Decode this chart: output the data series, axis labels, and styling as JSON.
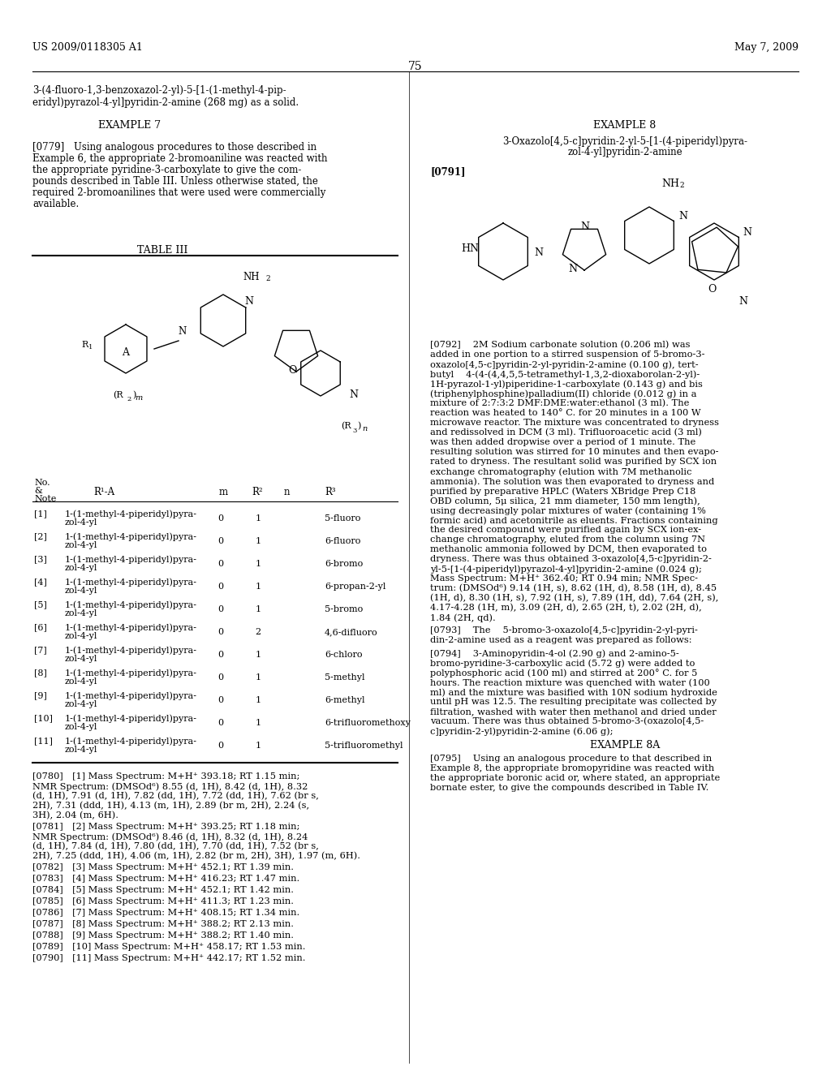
{
  "page_header_left": "US 2009/0118305 A1",
  "page_header_right": "May 7, 2009",
  "page_number": "75",
  "left_col_top": "3-(4-fluoro-1,3-benzoxazol-2-yl)-5-[1-(1-methyl-4-pip-\neridyl)pyrazol-4-yl]pyridin-2-amine (268 mg) as a solid.",
  "example7_heading": "EXAMPLE 7",
  "para_0779": "[0779] Using analogous procedures to those described in\nExample 6, the appropriate 2-bromoaniline was reacted with\nthe appropriate pyridine-3-carboxylate to give the com-\npounds described in Table III. Unless otherwise stated, the\nrequired 2-bromoanilines that were used were commercially\navailable.",
  "table_heading": "TABLE III",
  "table_col_headers": [
    "No.\n&\nNote",
    "R¹-A",
    "m",
    "R²",
    "n",
    "R³"
  ],
  "table_rows": [
    [
      "[1]",
      "1-(1-methyl-4-piperidyl)pyra-\nzol-4-yl",
      "0",
      "1",
      "5-fluoro"
    ],
    [
      "[2]",
      "1-(1-methyl-4-piperidyl)pyra-\nzol-4-yl",
      "0",
      "1",
      "6-fluoro"
    ],
    [
      "[3]",
      "1-(1-methyl-4-piperidyl)pyra-\nzol-4-yl",
      "0",
      "1",
      "6-bromo"
    ],
    [
      "[4]",
      "1-(1-methyl-4-piperidyl)pyra-\nzol-4-yl",
      "0",
      "1",
      "6-propan-2-yl"
    ],
    [
      "[5]",
      "1-(1-methyl-4-piperidyl)pyra-\nzol-4-yl",
      "0",
      "1",
      "5-bromo"
    ],
    [
      "[6]",
      "1-(1-methyl-4-piperidyl)pyra-\nzol-4-yl",
      "0",
      "2",
      "4,6-difluoro"
    ],
    [
      "[7]",
      "1-(1-methyl-4-piperidyl)pyra-\nzol-4-yl",
      "0",
      "1",
      "6-chloro"
    ],
    [
      "[8]",
      "1-(1-methyl-4-piperidyl)pyra-\nzol-4-yl",
      "0",
      "1",
      "5-methyl"
    ],
    [
      "[9]",
      "1-(1-methyl-4-piperidyl)pyra-\nzol-4-yl",
      "0",
      "1",
      "6-methyl"
    ],
    [
      "[10]",
      "1-(1-methyl-4-piperidyl)pyra-\nzol-4-yl",
      "0",
      "1",
      "6-trifluoromethoxy"
    ],
    [
      "[11]",
      "1-(1-methyl-4-piperidyl)pyra-\nzol-4-yl",
      "0",
      "1",
      "5-trifluoromethyl"
    ]
  ],
  "para_0780": "[0780] [1] Mass Spectrum: M+H⁺ 393.18; RT 1.15 min;\nNMR Spectrum: (DMSOd⁶) 8.55 (d, 1H), 8.42 (d, 1H), 8.32\n(d, 1H), 7.91 (d, 1H), 7.82 (dd, 1H), 7.72 (dd, 1H), 7.62 (br s,\n2H), 7.31 (ddd, 1H), 4.13 (m, 1H), 2.89 (br m, 2H), 2.24 (s,\n3H), 2.04 (m, 6H).",
  "para_0781": "[0781] [2] Mass Spectrum: M+H⁺ 393.25; RT 1.18 min;\nNMR Spectrum: (DMSOd⁶) 8.46 (d, 1H), 8.32 (d, 1H), 8.24\n(d, 1H), 7.84 (d, 1H), 7.80 (dd, 1H), 7.70 (dd, 1H), 7.52 (br s,\n2H), 7.25 (ddd, 1H), 4.06 (m, 1H), 2.82 (br m, 2H), 3H), 1.97 (m, 6H).",
  "para_0782": "[0782] [3] Mass Spectrum: M+H⁺ 452.1; RT 1.39 min.",
  "para_0783": "[0783] [4] Mass Spectrum: M+H⁺ 416.23; RT 1.47 min.",
  "para_0784": "[0784] [5] Mass Spectrum: M+H⁺ 452.1; RT 1.42 min.",
  "para_0785": "[0785] [6] Mass Spectrum: M+H⁺ 411.3; RT 1.23 min.",
  "para_0786": "[0786] [7] Mass Spectrum: M+H⁺ 408.15; RT 1.34 min.",
  "para_0787": "[0787] [8] Mass Spectrum: M+H⁺ 388.2; RT 2.13 min.",
  "para_0788": "[0788] [9] Mass Spectrum: M+H⁺ 388.2; RT 1.40 min.",
  "para_0789": "[0789] [10] Mass Spectrum: M+H⁺ 458.17; RT 1.53 min.",
  "para_0790": "[0790] [11] Mass Spectrum: M+H⁺ 442.17; RT 1.52 min.",
  "example8_heading": "EXAMPLE 8",
  "example8_title": "3-Oxazolo[4,5-c]pyridin-2-yl-5-[1-(4-piperidyl)pyra-\nzol-4-yl]pyridin-2-amine",
  "para_0791": "[0791]",
  "para_0792": "[0792]  2M Sodium carbonate solution (0.206 ml) was\nadded in one portion to a stirred suspension of 5-bromo-3-\noxazolo[4,5-c]pyridin-2-yl-pyridin-2-amine (0.100 g), tert-\nbutyl  4-(4-(4,4,5,5-tetramethyl-1,3,2-dioxaborolan-2-yl)-\n1H-pyrazol-1-yl)piperidine-1-carboxylate (0.143 g) and bis\n(triphenylphosphine)palladium(II) chloride (0.012 g) in a\nmixture of 2:7:3:2 DMF:DME:water:ethanol (3 ml). The\nreaction was heated to 140° C. for 20 minutes in a 100 W\nmicrowave reactor. The mixture was concentrated to dryness\nand redissolved in DCM (3 ml). Trifluoroacetic acid (3 ml)\nwas then added dropwise over a period of 1 minute. The\nresulting solution was stirred for 10 minutes and then evapo-\nrated to dryness. The resultant solid was purified by SCX ion\nexchange chromatography (elution with 7M methanolic\nammonia). The solution was then evaporated to dryness and\npurified by preparative HPLC (Waters XBridge Prep C18\nOBD column, 5μ silica, 21 mm diameter, 150 mm length),\nusing decreasingly polar mixtures of water (containing 1%\nformic acid) and acetonitrile as eluents. Fractions containing\nthe desired compound were purified again by SCX ion-ex-\nchange chromatography, eluted from the column using 7N\nmethanolic ammonia followed by DCM, then evaporated to\ndryness. There was thus obtained 3-oxazolo[4,5-c]pyridin-2-\nyl-5-[1-(4-piperidyl)pyrazol-4-yl]pyridin-2-amine (0.024 g);\nMass Spectrum: M+H⁺ 362.40; RT 0.94 min; NMR Spec-\ntrum: (DMSOd⁶) 9.14 (1H, s), 8.62 (1H, d), 8.58 (1H, d), 8.45\n(1H, d), 8.30 (1H, s), 7.92 (1H, s), 7.89 (1H, dd), 7.64 (2H, s),\n4.17-4.28 (1H, m), 3.09 (2H, d), 2.65 (2H, t), 2.02 (2H, d),\n1.84 (2H, qd).",
  "para_0793": "[0793]  The  5-bromo-3-oxazolo[4,5-c]pyridin-2-yl-pyri-\ndin-2-amine used as a reagent was prepared as follows:",
  "para_0794": "[0794]  3-Aminopyridin-4-ol (2.90 g) and 2-amino-5-\nbromo-pyridine-3-carboxylic acid (5.72 g) were added to\npolyphosphoric acid (100 ml) and stirred at 200° C. for 5\nhours. The reaction mixture was quenched with water (100\nml) and the mixture was basified with 10N sodium hydroxide\nuntil pH was 12.5. The resulting precipitate was collected by\nfiltration, washed with water then methanol and dried under\nvacuum. There was thus obtained 5-bromo-3-(oxazolo[4,5-\nc]pyridin-2-yl)pyridin-2-amine (6.06 g);",
  "example8a_heading": "EXAMPLE 8A",
  "para_0795": "[0795]  Using an analogous procedure to that described in\nExample 8, the appropriate bromopyridine was reacted with\nthe appropriate boronic acid or, where stated, an appropriate\nbornate ester, to give the compounds described in Table IV."
}
